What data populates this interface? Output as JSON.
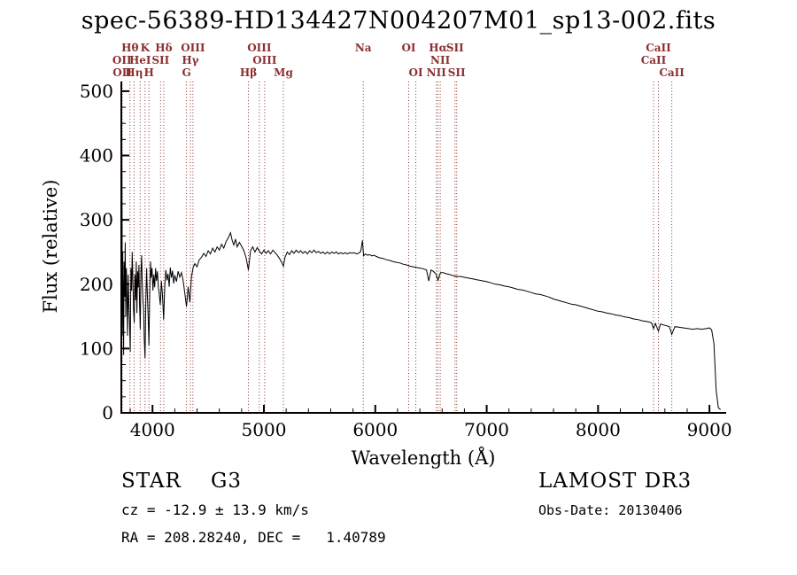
{
  "colors": {
    "background": "#ffffff",
    "spectrum": "#000000",
    "line_marker": "#8b2f2f",
    "text": "#000000"
  },
  "annotations": {
    "class_line_left": "STAR    G3",
    "class_line_right": "LAMOST DR3",
    "cz_line": "cz = -12.9 ± 13.9 km/s",
    "obs_date_line": "Obs-Date: 20130406",
    "radec_line": "RA = 208.28240, DEC =   1.40789"
  },
  "chart_data": {
    "type": "line",
    "title": "spec-56389-HD134427N004207M01_sp13-002.fits",
    "xlabel": "Wavelength (Å)",
    "ylabel": "Flux (relative)",
    "xlim": [
      3720,
      9150
    ],
    "ylim": [
      0,
      515
    ],
    "x_ticks": [
      4000,
      5000,
      6000,
      7000,
      8000,
      9000
    ],
    "y_ticks": [
      0,
      100,
      200,
      300,
      400,
      500
    ],
    "x_minor_step": 200,
    "y_minor_step": 25,
    "grid": false,
    "legend": "none",
    "spectral_lines": [
      {
        "wavelength": 3726,
        "label": "OII",
        "row": 1
      },
      {
        "wavelength": 3729,
        "label": "OII",
        "row": 2
      },
      {
        "wavelength": 3798,
        "label": "Hθ",
        "row": 0
      },
      {
        "wavelength": 3835,
        "label": "Hη",
        "row": 2
      },
      {
        "wavelength": 3889,
        "label": "HeI",
        "row": 1
      },
      {
        "wavelength": 3933,
        "label": "K",
        "row": 0
      },
      {
        "wavelength": 3968,
        "label": "H",
        "row": 2
      },
      {
        "wavelength": 4072,
        "label": "SII",
        "row": 1
      },
      {
        "wavelength": 4101,
        "label": "Hδ",
        "row": 0
      },
      {
        "wavelength": 4305,
        "label": "G",
        "row": 2
      },
      {
        "wavelength": 4340,
        "label": "Hγ",
        "row": 1
      },
      {
        "wavelength": 4363,
        "label": "OIII",
        "row": 0
      },
      {
        "wavelength": 4861,
        "label": "Hβ",
        "row": 2
      },
      {
        "wavelength": 4959,
        "label": "OIII",
        "row": 0
      },
      {
        "wavelength": 5007,
        "label": "OIII",
        "row": 1
      },
      {
        "wavelength": 5175,
        "label": "Mg",
        "row": 2
      },
      {
        "wavelength": 5892,
        "label": "Na",
        "row": 0
      },
      {
        "wavelength": 6300,
        "label": "OI",
        "row": 0
      },
      {
        "wavelength": 6364,
        "label": "OI",
        "row": 2
      },
      {
        "wavelength": 6548,
        "label": "NII",
        "row": 2
      },
      {
        "wavelength": 6563,
        "label": "Hα",
        "row": 0
      },
      {
        "wavelength": 6583,
        "label": "NII",
        "row": 1
      },
      {
        "wavelength": 6716,
        "label": "SII",
        "row": 0
      },
      {
        "wavelength": 6731,
        "label": "SII",
        "row": 2
      },
      {
        "wavelength": 8498,
        "label": "CaII",
        "row": 1
      },
      {
        "wavelength": 8542,
        "label": "CaII",
        "row": 0
      },
      {
        "wavelength": 8662,
        "label": "CaII",
        "row": 2
      }
    ],
    "series": [
      {
        "name": "spectrum",
        "color": "#000000",
        "points": [
          [
            3720,
            205
          ],
          [
            3723,
            495
          ],
          [
            3726,
            330
          ],
          [
            3729,
            120
          ],
          [
            3733,
            250
          ],
          [
            3737,
            175
          ],
          [
            3741,
            90
          ],
          [
            3745,
            235
          ],
          [
            3750,
            180
          ],
          [
            3755,
            265
          ],
          [
            3760,
            150
          ],
          [
            3765,
            225
          ],
          [
            3770,
            185
          ],
          [
            3776,
            120
          ],
          [
            3782,
            215
          ],
          [
            3788,
            165
          ],
          [
            3794,
            140
          ],
          [
            3800,
            95
          ],
          [
            3806,
            225
          ],
          [
            3812,
            190
          ],
          [
            3818,
            250
          ],
          [
            3824,
            205
          ],
          [
            3830,
            160
          ],
          [
            3836,
            140
          ],
          [
            3842,
            215
          ],
          [
            3848,
            175
          ],
          [
            3854,
            235
          ],
          [
            3860,
            155
          ],
          [
            3866,
            220
          ],
          [
            3872,
            195
          ],
          [
            3878,
            230
          ],
          [
            3884,
            170
          ],
          [
            3890,
            130
          ],
          [
            3896,
            215
          ],
          [
            3902,
            245
          ],
          [
            3908,
            205
          ],
          [
            3914,
            175
          ],
          [
            3920,
            160
          ],
          [
            3926,
            115
          ],
          [
            3933,
            85
          ],
          [
            3940,
            175
          ],
          [
            3947,
            225
          ],
          [
            3954,
            185
          ],
          [
            3961,
            150
          ],
          [
            3968,
            105
          ],
          [
            3975,
            190
          ],
          [
            3982,
            235
          ],
          [
            3989,
            210
          ],
          [
            3996,
            225
          ],
          [
            4004,
            190
          ],
          [
            4012,
            215
          ],
          [
            4020,
            195
          ],
          [
            4028,
            225
          ],
          [
            4036,
            205
          ],
          [
            4044,
            220
          ],
          [
            4052,
            195
          ],
          [
            4060,
            185
          ],
          [
            4070,
            168
          ],
          [
            4080,
            205
          ],
          [
            4090,
            182
          ],
          [
            4100,
            145
          ],
          [
            4110,
            198
          ],
          [
            4120,
            222
          ],
          [
            4130,
            206
          ],
          [
            4140,
            216
          ],
          [
            4150,
            196
          ],
          [
            4160,
            226
          ],
          [
            4170,
            210
          ],
          [
            4180,
            221
          ],
          [
            4190,
            201
          ],
          [
            4200,
            214
          ],
          [
            4215,
            204
          ],
          [
            4230,
            220
          ],
          [
            4245,
            211
          ],
          [
            4260,
            218
          ],
          [
            4275,
            206
          ],
          [
            4290,
            186
          ],
          [
            4305,
            165
          ],
          [
            4320,
            196
          ],
          [
            4335,
            172
          ],
          [
            4350,
            211
          ],
          [
            4365,
            226
          ],
          [
            4380,
            232
          ],
          [
            4400,
            227
          ],
          [
            4420,
            238
          ],
          [
            4440,
            242
          ],
          [
            4460,
            248
          ],
          [
            4480,
            243
          ],
          [
            4500,
            252
          ],
          [
            4520,
            247
          ],
          [
            4540,
            256
          ],
          [
            4560,
            250
          ],
          [
            4580,
            258
          ],
          [
            4600,
            253
          ],
          [
            4620,
            262
          ],
          [
            4640,
            256
          ],
          [
            4660,
            266
          ],
          [
            4680,
            272
          ],
          [
            4700,
            280
          ],
          [
            4715,
            268
          ],
          [
            4730,
            261
          ],
          [
            4745,
            270
          ],
          [
            4760,
            258
          ],
          [
            4780,
            265
          ],
          [
            4800,
            259
          ],
          [
            4820,
            252
          ],
          [
            4840,
            241
          ],
          [
            4861,
            222
          ],
          [
            4880,
            252
          ],
          [
            4900,
            258
          ],
          [
            4920,
            250
          ],
          [
            4940,
            257
          ],
          [
            4960,
            251
          ],
          [
            4980,
            247
          ],
          [
            5000,
            253
          ],
          [
            5020,
            248
          ],
          [
            5040,
            252
          ],
          [
            5060,
            247
          ],
          [
            5080,
            253
          ],
          [
            5100,
            249
          ],
          [
            5120,
            245
          ],
          [
            5140,
            240
          ],
          [
            5160,
            234
          ],
          [
            5175,
            228
          ],
          [
            5190,
            242
          ],
          [
            5210,
            250
          ],
          [
            5230,
            246
          ],
          [
            5250,
            252
          ],
          [
            5270,
            248
          ],
          [
            5290,
            253
          ],
          [
            5310,
            249
          ],
          [
            5330,
            252
          ],
          [
            5350,
            248
          ],
          [
            5370,
            251
          ],
          [
            5390,
            247
          ],
          [
            5410,
            252
          ],
          [
            5430,
            249
          ],
          [
            5450,
            253
          ],
          [
            5470,
            249
          ],
          [
            5490,
            251
          ],
          [
            5510,
            248
          ],
          [
            5530,
            250
          ],
          [
            5550,
            247
          ],
          [
            5570,
            250
          ],
          [
            5590,
            247
          ],
          [
            5610,
            250
          ],
          [
            5630,
            248
          ],
          [
            5650,
            250
          ],
          [
            5670,
            247
          ],
          [
            5690,
            249
          ],
          [
            5710,
            247
          ],
          [
            5730,
            249
          ],
          [
            5750,
            247
          ],
          [
            5770,
            249
          ],
          [
            5790,
            248
          ],
          [
            5810,
            249
          ],
          [
            5830,
            247
          ],
          [
            5850,
            248
          ],
          [
            5870,
            251
          ],
          [
            5885,
            268
          ],
          [
            5895,
            244
          ],
          [
            5910,
            247
          ],
          [
            5930,
            245
          ],
          [
            5950,
            246
          ],
          [
            5970,
            244
          ],
          [
            5990,
            245
          ],
          [
            6010,
            243
          ],
          [
            6040,
            241
          ],
          [
            6070,
            240
          ],
          [
            6100,
            238
          ],
          [
            6130,
            237
          ],
          [
            6160,
            235
          ],
          [
            6190,
            234
          ],
          [
            6220,
            233
          ],
          [
            6250,
            231
          ],
          [
            6280,
            230
          ],
          [
            6310,
            228
          ],
          [
            6340,
            227
          ],
          [
            6370,
            226
          ],
          [
            6400,
            225
          ],
          [
            6430,
            224
          ],
          [
            6460,
            222
          ],
          [
            6480,
            205
          ],
          [
            6500,
            222
          ],
          [
            6520,
            220
          ],
          [
            6545,
            216
          ],
          [
            6563,
            206
          ],
          [
            6585,
            218
          ],
          [
            6610,
            218
          ],
          [
            6640,
            216
          ],
          [
            6670,
            215
          ],
          [
            6700,
            213
          ],
          [
            6730,
            212
          ],
          [
            6760,
            212
          ],
          [
            6790,
            211
          ],
          [
            6820,
            210
          ],
          [
            6850,
            209
          ],
          [
            6880,
            208
          ],
          [
            6910,
            207
          ],
          [
            6940,
            206
          ],
          [
            6970,
            205
          ],
          [
            7000,
            204
          ],
          [
            7040,
            202
          ],
          [
            7080,
            200
          ],
          [
            7120,
            199
          ],
          [
            7160,
            197
          ],
          [
            7200,
            196
          ],
          [
            7240,
            194
          ],
          [
            7280,
            192
          ],
          [
            7320,
            191
          ],
          [
            7360,
            189
          ],
          [
            7400,
            187
          ],
          [
            7440,
            185
          ],
          [
            7480,
            184
          ],
          [
            7520,
            182
          ],
          [
            7560,
            180
          ],
          [
            7600,
            177
          ],
          [
            7640,
            175
          ],
          [
            7680,
            173
          ],
          [
            7720,
            171
          ],
          [
            7760,
            169
          ],
          [
            7800,
            168
          ],
          [
            7840,
            166
          ],
          [
            7880,
            164
          ],
          [
            7920,
            162
          ],
          [
            7960,
            160
          ],
          [
            8000,
            158
          ],
          [
            8040,
            157
          ],
          [
            8080,
            155
          ],
          [
            8120,
            154
          ],
          [
            8160,
            152
          ],
          [
            8200,
            151
          ],
          [
            8240,
            149
          ],
          [
            8280,
            148
          ],
          [
            8320,
            146
          ],
          [
            8360,
            145
          ],
          [
            8400,
            143
          ],
          [
            8440,
            142
          ],
          [
            8480,
            140
          ],
          [
            8498,
            131
          ],
          [
            8515,
            139
          ],
          [
            8542,
            127
          ],
          [
            8560,
            138
          ],
          [
            8600,
            136
          ],
          [
            8640,
            134
          ],
          [
            8662,
            122
          ],
          [
            8690,
            134
          ],
          [
            8730,
            133
          ],
          [
            8770,
            132
          ],
          [
            8810,
            131
          ],
          [
            8850,
            130
          ],
          [
            8890,
            131
          ],
          [
            8930,
            130
          ],
          [
            8970,
            131
          ],
          [
            9000,
            132
          ],
          [
            9020,
            129
          ],
          [
            9040,
            108
          ],
          [
            9060,
            35
          ],
          [
            9080,
            8
          ],
          [
            9100,
            5
          ]
        ]
      }
    ]
  }
}
